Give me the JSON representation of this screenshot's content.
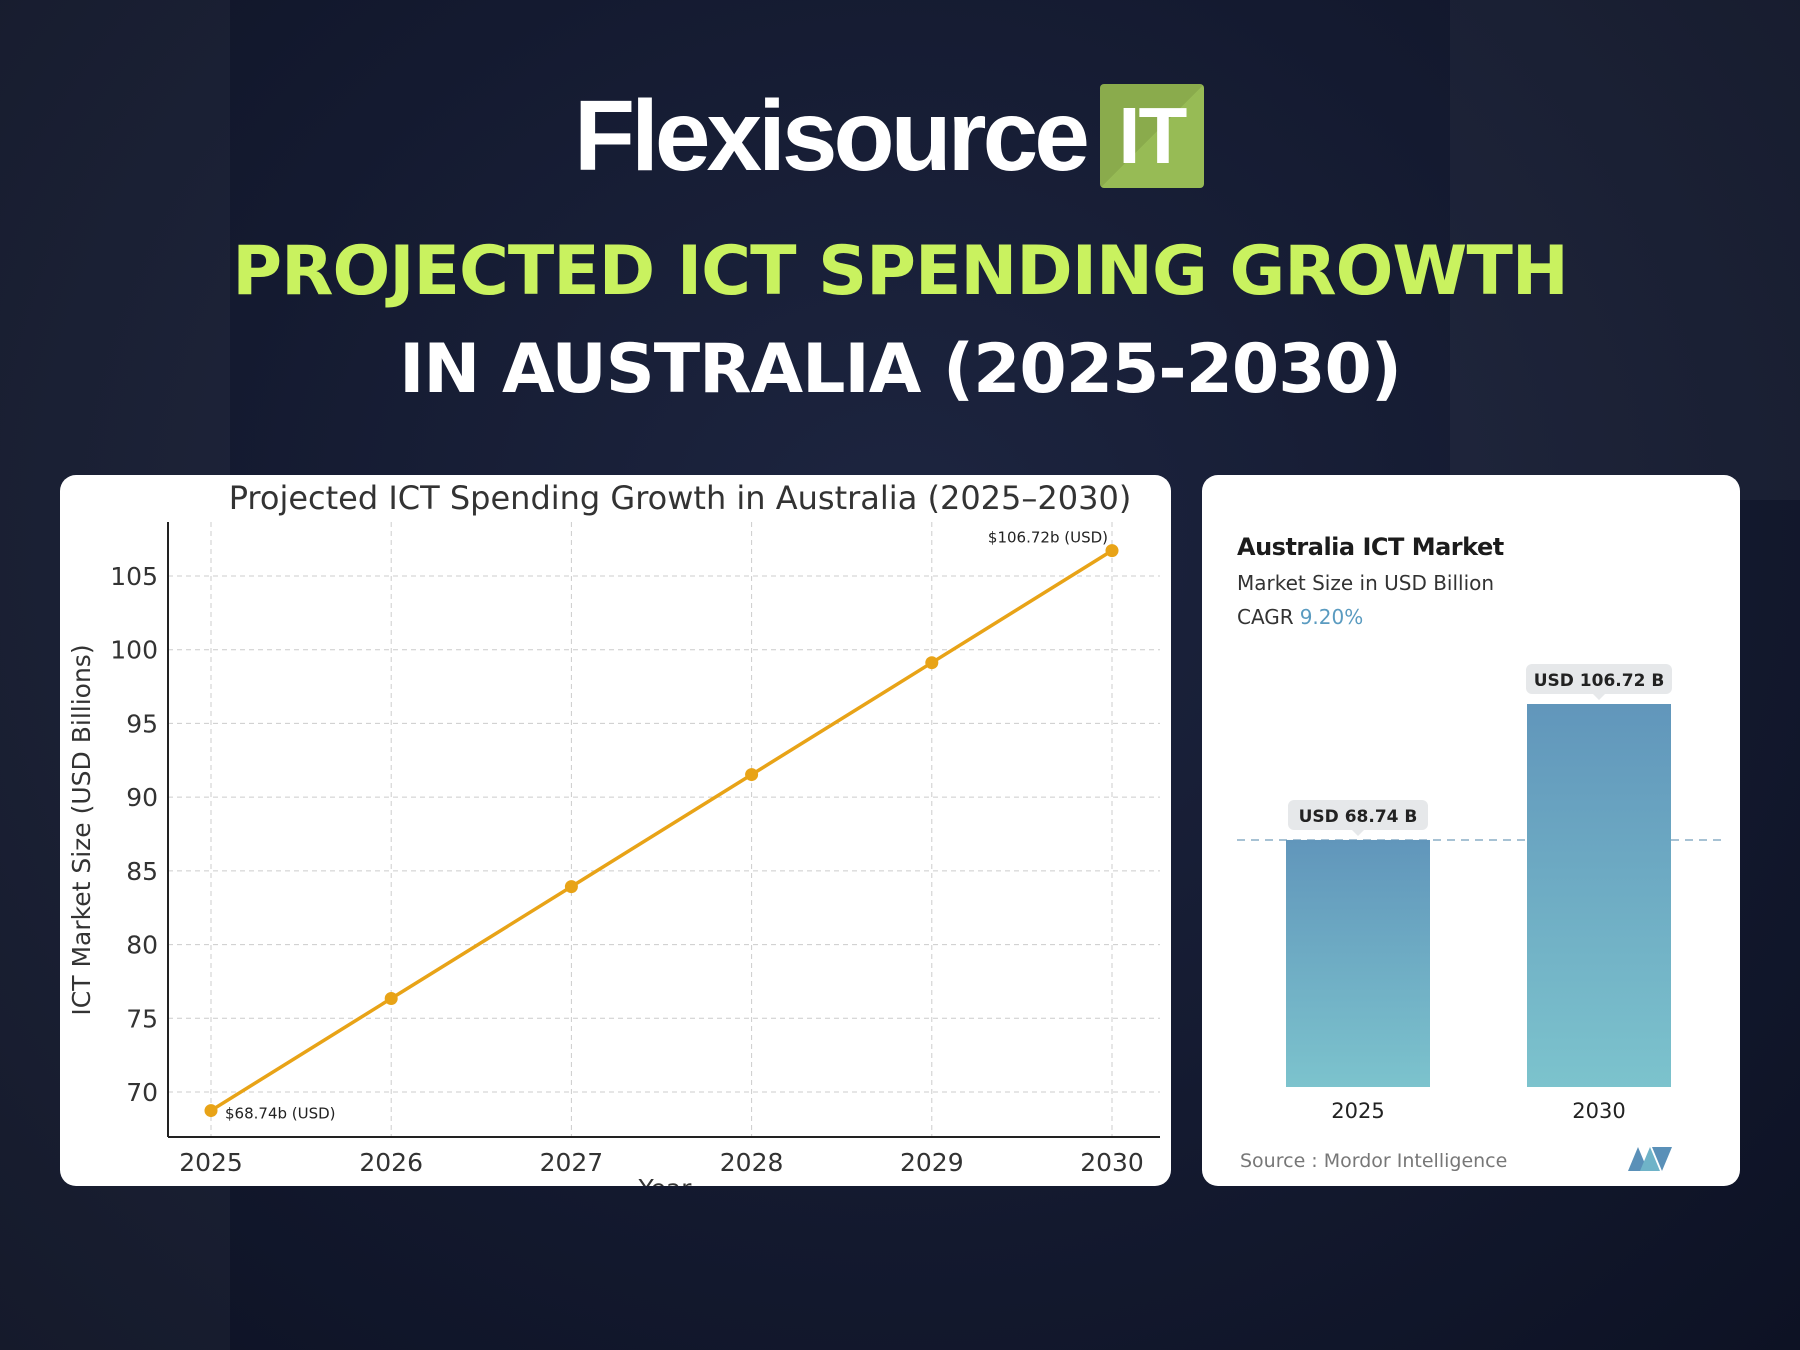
{
  "brand": {
    "name": "Flexisource",
    "suffix": "IT",
    "accent": "#8aab4c"
  },
  "headline": {
    "line1": "PROJECTED ICT SPENDING GROWTH",
    "line2": "IN AUSTRALIA (2025-2030)",
    "line1_color": "#c9f25f",
    "line2_color": "#ffffff"
  },
  "chart_data": [
    {
      "type": "line",
      "title": "Projected ICT Spending Growth in Australia (2025–2030)",
      "xlabel": "Year",
      "ylabel": "ICT Market Size (USD Billions)",
      "x": [
        2025,
        2026,
        2027,
        2028,
        2029,
        2030
      ],
      "values": [
        68.74,
        76.34,
        83.93,
        91.53,
        99.12,
        106.72
      ],
      "yticks": [
        70,
        75,
        80,
        85,
        90,
        95,
        100,
        105
      ],
      "ylim": [
        67,
        108.5
      ],
      "grid": true,
      "color": "#e8a317",
      "annotations": [
        {
          "x": 2025,
          "text": "$68.74b (USD)"
        },
        {
          "x": 2030,
          "text": "$106.72b (USD)"
        }
      ]
    },
    {
      "type": "bar",
      "title": "Australia ICT Market",
      "subtitle": "Market Size in USD Billion",
      "cagr_label": "CAGR",
      "cagr_value": "9.20%",
      "categories": [
        "2025",
        "2030"
      ],
      "values": [
        68.74,
        106.72
      ],
      "data_labels": [
        "USD 68.74 B",
        "USD 106.72 B"
      ],
      "source": "Source :  Mordor Intelligence",
      "colors": {
        "top": "#6196bb",
        "bottom": "#7cc3cd"
      }
    }
  ]
}
